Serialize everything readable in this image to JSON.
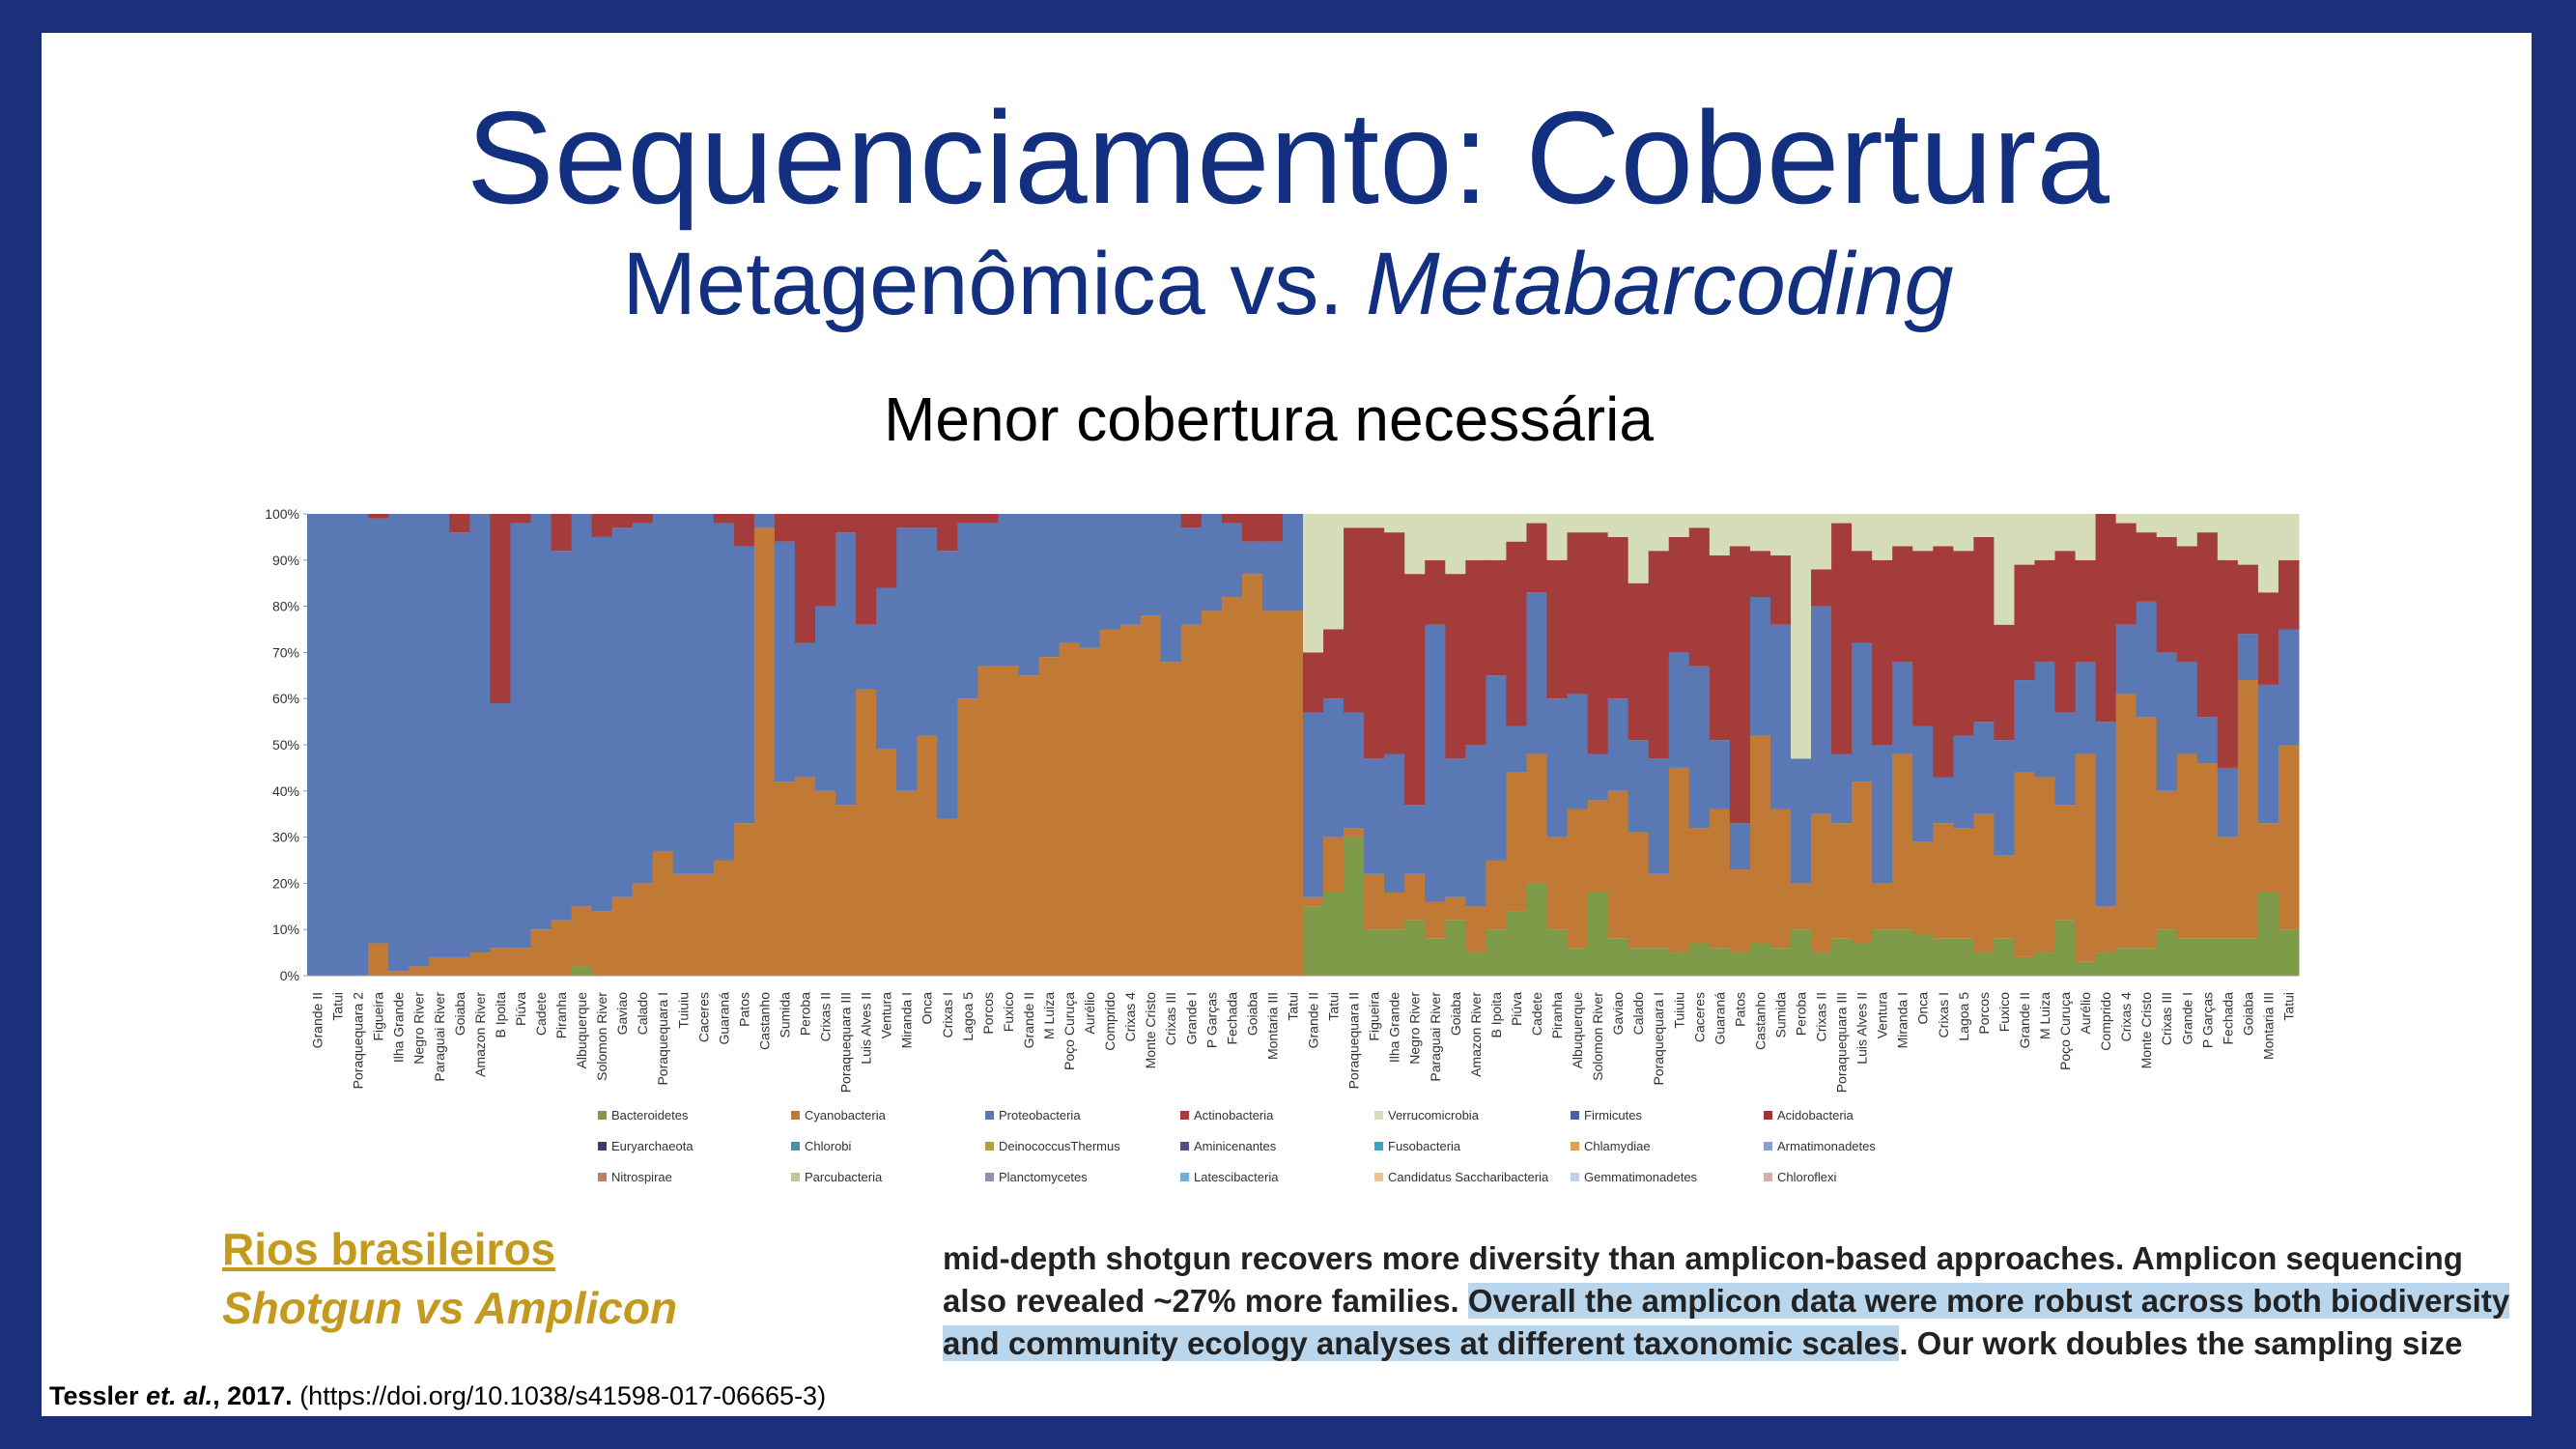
{
  "title": "Sequenciamento: Cobertura",
  "subtitle": {
    "text": "Metagenômica vs.",
    "emphasis": "Metabarcoding"
  },
  "heading": "Menor cobertura necessária",
  "source": {
    "link": "Rios brasileiros",
    "tag": "Shotgun vs Amplicon"
  },
  "citation": {
    "author": "Tessler",
    "etal": " et. al.",
    "year": ", 2017.",
    "doi": "(https://doi.org/10.1038/s41598-017-06665-3)"
  },
  "excerpt": [
    [
      {
        "text": "mid-depth shotgun recovers more diversity than amplicon-based approaches. Amplicon sequencing",
        "highlighted": false
      }
    ],
    [
      {
        "text": "also revealed ~27% more families. ",
        "highlighted": false
      },
      {
        "text": "Overall the amplicon data were more robust across both biodiversity",
        "highlighted": true
      }
    ],
    [
      {
        "text": "and community ecology analyses at different taxonomic scales",
        "highlighted": true
      },
      {
        "text": ". Our work doubles the sampling size",
        "highlighted": false
      }
    ]
  ],
  "chart_data": {
    "type": "stacked_bar",
    "categories": [
      "Grande II",
      "Tatui",
      "Poraquequara 2",
      "Figueira",
      "Ilha Grande",
      "Negro River",
      "Paraguai River",
      "Goiaba",
      "Amazon River",
      "B Ipoita",
      "Piúva",
      "Cadete",
      "Piranha",
      "Albuquerque",
      "Solomon River",
      "Gaviao",
      "Calado",
      "Poraquequara I",
      "Tuiuiu",
      "Caceres",
      "Guaraná",
      "Patos",
      "Castanho",
      "Sumida",
      "Peroba",
      "Crixas II",
      "Poraquequara III",
      "Luis Alves II",
      "Ventura",
      "Miranda I",
      "Onca",
      "Crixas I",
      "Lagoa 5",
      "Porcos",
      "Fuxico",
      "Grande II",
      "M Luiza",
      "Poço Curuça",
      "Aurélio",
      "Comprido",
      "Crixas 4",
      "Monte Cristo",
      "Crixas III",
      "Grande I",
      "P Garças",
      "Fechada",
      "Goiaba",
      "Montaria III",
      "Tatui",
      "Grande II",
      "Tatui",
      "Poraquequara II",
      "Figueira",
      "Ilha Grande",
      "Negro River",
      "Paraguai River",
      "Goiaba",
      "Amazon River",
      "B Ipoita",
      "Piúva",
      "Cadete",
      "Piranha",
      "Albuquerque",
      "Solomon River",
      "Gaviao",
      "Calado",
      "Poraquequara I",
      "Tuiuiu",
      "Caceres",
      "Guaraná",
      "Patos",
      "Castanho",
      "Sumida",
      "Peroba",
      "Crixas II",
      "Poraquequara III",
      "Luis Alves II",
      "Ventura",
      "Miranda I",
      "Onca",
      "Crixas I",
      "Lagoa 5",
      "Porcos",
      "Fuxico",
      "Grande II",
      "M Luiza",
      "Poço Curuça",
      "Aurélio",
      "Comprido",
      "Crixas 4",
      "Monte Cristo",
      "Crixas III",
      "Grande I",
      "P Garças",
      "Fechada",
      "Goiaba",
      "Montaria III",
      "Tatui"
    ],
    "series": [
      {
        "name": "Bacteroidetes",
        "color": "#7d9a48",
        "values": [
          0,
          0,
          0,
          0,
          0,
          0,
          0,
          0,
          0,
          0,
          0,
          0,
          0,
          2,
          0,
          0,
          0,
          0,
          0,
          0,
          0,
          0,
          0,
          0,
          0,
          0,
          0,
          0,
          0,
          0,
          0,
          0,
          0,
          0,
          0,
          0,
          0,
          0,
          0,
          0,
          0,
          0,
          0,
          0,
          0,
          0,
          0,
          0,
          0,
          15,
          18,
          30,
          10,
          10,
          12,
          8,
          12,
          5,
          10,
          14,
          20,
          10,
          6,
          18,
          8,
          6,
          6,
          5,
          7,
          6,
          5,
          7,
          6,
          10,
          5,
          8,
          7,
          10,
          10,
          9,
          8,
          8,
          5,
          8,
          4,
          5,
          12,
          3,
          5,
          6,
          6,
          10,
          8,
          8,
          8,
          8,
          18,
          10
        ]
      },
      {
        "name": "Cyanobacteria",
        "color": "#c07a35",
        "values": [
          0,
          0,
          0,
          7,
          1,
          2,
          4,
          4,
          5,
          6,
          6,
          10,
          12,
          13,
          14,
          17,
          20,
          27,
          22,
          22,
          25,
          33,
          97,
          42,
          43,
          40,
          37,
          62,
          49,
          40,
          52,
          34,
          60,
          67,
          67,
          65,
          69,
          72,
          71,
          75,
          76,
          78,
          68,
          76,
          79,
          82,
          87,
          79,
          79,
          2,
          12,
          2,
          12,
          8,
          10,
          8,
          5,
          10,
          15,
          30,
          28,
          20,
          30,
          20,
          32,
          25,
          16,
          40,
          25,
          30,
          18,
          45,
          30,
          10,
          30,
          25,
          35,
          10,
          38,
          20,
          25,
          24,
          30,
          18,
          40,
          38,
          25,
          45,
          10,
          55,
          50,
          30,
          40,
          38,
          22,
          56,
          15,
          40
        ]
      },
      {
        "name": "Proteobacteria",
        "color": "#5a78b3",
        "values": [
          100,
          100,
          100,
          92,
          99,
          98,
          96,
          92,
          95,
          53,
          92,
          90,
          80,
          85,
          81,
          80,
          78,
          73,
          78,
          78,
          73,
          60,
          3,
          52,
          29,
          40,
          59,
          14,
          35,
          57,
          45,
          58,
          38,
          31,
          33,
          35,
          31,
          28,
          29,
          25,
          24,
          22,
          32,
          21,
          21,
          16,
          7,
          15,
          21,
          40,
          30,
          25,
          25,
          30,
          15,
          60,
          30,
          35,
          40,
          10,
          35,
          30,
          25,
          10,
          20,
          20,
          25,
          25,
          35,
          15,
          10,
          30,
          40,
          27,
          45,
          15,
          30,
          30,
          20,
          25,
          10,
          20,
          20,
          25,
          20,
          25,
          20,
          20,
          40,
          15,
          25,
          30,
          20,
          10,
          15,
          10,
          30,
          25
        ]
      },
      {
        "name": "Actinobacteria",
        "color": "#a43c3c",
        "values": [
          0,
          0,
          0,
          1,
          0,
          0,
          0,
          4,
          0,
          41,
          2,
          0,
          8,
          0,
          5,
          3,
          2,
          0,
          0,
          0,
          2,
          7,
          0,
          6,
          28,
          20,
          4,
          24,
          16,
          3,
          3,
          8,
          2,
          2,
          0,
          0,
          0,
          0,
          0,
          0,
          0,
          0,
          0,
          3,
          0,
          2,
          6,
          6,
          0,
          13,
          15,
          40,
          50,
          48,
          50,
          14,
          40,
          40,
          25,
          40,
          15,
          30,
          35,
          48,
          35,
          34,
          45,
          25,
          30,
          40,
          60,
          10,
          15,
          0,
          8,
          50,
          20,
          40,
          25,
          38,
          50,
          40,
          40,
          25,
          25,
          22,
          35,
          22,
          45,
          22,
          15,
          25,
          25,
          40,
          45,
          15,
          20,
          15
        ]
      },
      {
        "name": "Verrucomicrobia",
        "color": "#d5dcb8",
        "values": [
          0,
          0,
          0,
          0,
          0,
          0,
          0,
          0,
          0,
          0,
          0,
          0,
          0,
          0,
          0,
          0,
          0,
          0,
          0,
          0,
          0,
          0,
          0,
          0,
          0,
          0,
          0,
          0,
          0,
          0,
          0,
          0,
          0,
          0,
          0,
          0,
          0,
          0,
          0,
          0,
          0,
          0,
          0,
          0,
          0,
          0,
          0,
          0,
          0,
          30,
          25,
          3,
          3,
          4,
          13,
          10,
          13,
          10,
          10,
          6,
          2,
          10,
          4,
          4,
          5,
          15,
          8,
          5,
          3,
          9,
          7,
          8,
          9,
          53,
          12,
          2,
          8,
          10,
          7,
          8,
          7,
          8,
          5,
          24,
          11,
          10,
          8,
          10,
          0,
          2,
          4,
          5,
          7,
          4,
          10,
          11,
          17,
          10
        ]
      }
    ],
    "other_legend": [
      {
        "name": "Firmicutes",
        "color": "#4a5fa5"
      },
      {
        "name": "Acidobacteria",
        "color": "#9c3535"
      },
      {
        "name": "Euryarchaeota",
        "color": "#3f3a70"
      },
      {
        "name": "Chlorobi",
        "color": "#4a8fb0"
      },
      {
        "name": "DeinococcusThermus",
        "color": "#b0a040"
      },
      {
        "name": "Aminicenantes",
        "color": "#5a4a80"
      },
      {
        "name": "Fusobacteria",
        "color": "#40a0c0"
      },
      {
        "name": "Chlamydiae",
        "color": "#e0a050"
      },
      {
        "name": "Armatimonadetes",
        "color": "#8aa0d0"
      },
      {
        "name": "Nitrospirae",
        "color": "#c08060"
      },
      {
        "name": "Parcubacteria",
        "color": "#c0c890"
      },
      {
        "name": "Planctomycetes",
        "color": "#9090b0"
      },
      {
        "name": "Latescibacteria",
        "color": "#70b0d0"
      },
      {
        "name": "Candidatus Saccharibacteria",
        "color": "#f0c090"
      },
      {
        "name": "Gemmatimonadetes",
        "color": "#c0d0e8"
      },
      {
        "name": "Chloroflexi",
        "color": "#d0b0b0"
      }
    ],
    "ylim": [
      0,
      100
    ],
    "yticks": [
      {
        "value": 0,
        "label": "0%"
      },
      {
        "value": 10,
        "label": "10%"
      },
      {
        "value": 20,
        "label": "20%"
      },
      {
        "value": 30,
        "label": "30%"
      },
      {
        "value": 40,
        "label": "40%"
      },
      {
        "value": 50,
        "label": "50%"
      },
      {
        "value": 60,
        "label": "60%"
      },
      {
        "value": 70,
        "label": "70%"
      },
      {
        "value": 80,
        "label": "80%"
      },
      {
        "value": 90,
        "label": "90%"
      },
      {
        "value": 100,
        "label": "100%"
      }
    ]
  }
}
